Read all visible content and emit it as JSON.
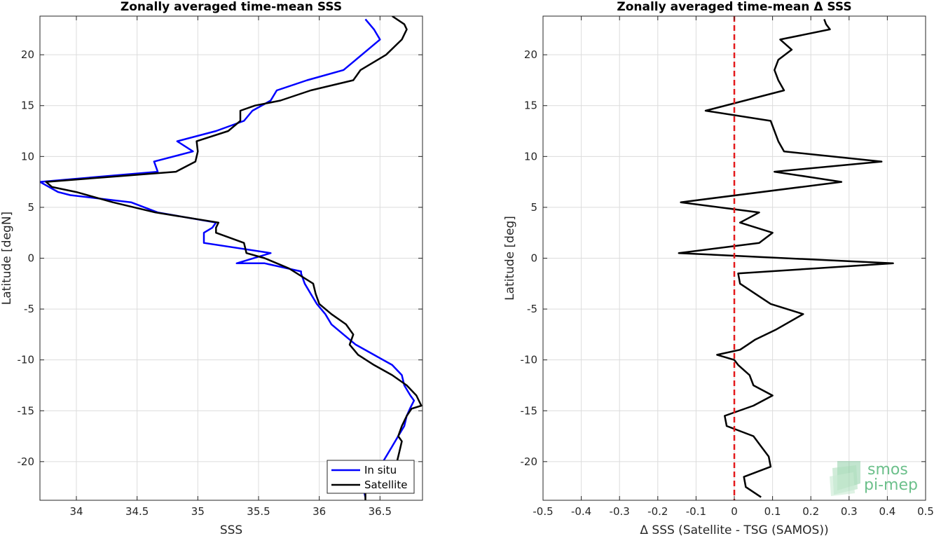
{
  "chart_data": [
    {
      "type": "line",
      "title": "Zonally averaged time-mean SSS",
      "xlabel": "SSS",
      "ylabel": "Latitude [degN]",
      "xlim": [
        33.7,
        36.85
      ],
      "ylim": [
        -23.8,
        23.8
      ],
      "xticks": [
        34,
        34.5,
        35,
        35.5,
        36,
        36.5
      ],
      "yticks": [
        -20,
        -15,
        -10,
        -5,
        0,
        5,
        10,
        15,
        20
      ],
      "grid": true,
      "legend_position": "bottom-right",
      "series": [
        {
          "name": "In situ",
          "color": "#0000ff",
          "x": [
            36.38,
            36.36,
            36.5,
            36.5,
            36.55,
            36.6,
            36.65,
            36.7,
            36.72,
            36.75,
            36.78,
            36.75,
            36.7,
            36.68,
            36.6,
            36.45,
            36.3,
            36.2,
            36.1,
            36.05,
            35.98,
            35.93,
            35.88,
            35.85,
            35.85,
            35.55,
            35.32,
            35.6,
            35.05,
            35.05,
            35.12,
            35.15,
            34.67,
            34.45,
            33.95,
            33.85,
            33.7,
            34.67,
            34.64,
            34.96,
            34.83,
            35.15,
            35.38,
            35.45,
            35.6,
            35.65,
            35.9,
            36.2,
            36.3,
            36.4,
            36.5,
            36.45,
            36.38
          ],
          "y": [
            -23.5,
            -22.5,
            -21.5,
            -20.5,
            -19.5,
            -18.5,
            -17.5,
            -16.5,
            -15.5,
            -14.7,
            -14,
            -13.5,
            -12.5,
            -11.5,
            -10.5,
            -9.5,
            -8.5,
            -7.5,
            -6.5,
            -5.5,
            -4.5,
            -3.5,
            -2.5,
            -1.5,
            -1.3,
            -0.5,
            -0.5,
            0.5,
            1.5,
            2.5,
            3.0,
            3.5,
            4.5,
            5.5,
            6.2,
            6.5,
            7.5,
            8.5,
            9.5,
            10.5,
            11.5,
            12.5,
            13.5,
            14.5,
            15.5,
            16.5,
            17.5,
            18.5,
            19.5,
            20.5,
            21.5,
            22.5,
            23.5
          ]
        },
        {
          "name": "Satellite",
          "color": "#000000",
          "x": [
            36.38,
            36.38,
            36.62,
            36.64,
            36.66,
            36.68,
            36.65,
            36.68,
            36.72,
            36.76,
            36.84,
            36.8,
            36.72,
            36.6,
            36.45,
            36.32,
            36.25,
            36.28,
            36.22,
            36.1,
            36.0,
            35.97,
            35.95,
            35.75,
            35.55,
            35.4,
            35.38,
            35.15,
            35.15,
            35.17,
            34.65,
            34.3,
            34.0,
            33.8,
            33.75,
            34.82,
            34.98,
            35.0,
            34.99,
            35.25,
            35.35,
            35.35,
            35.47,
            35.68,
            35.93,
            36.28,
            36.34,
            36.55,
            36.68,
            36.72,
            36.7,
            36.6
          ],
          "y": [
            -23.8,
            -22.5,
            -21.0,
            -20.0,
            -19.0,
            -18.0,
            -17.5,
            -16.5,
            -15.5,
            -14.8,
            -14.5,
            -13.5,
            -12.5,
            -11.5,
            -10.5,
            -9.5,
            -8.5,
            -7.5,
            -6.5,
            -5.5,
            -4.5,
            -3.5,
            -2.5,
            -1.0,
            0.0,
            0.5,
            1.5,
            2.5,
            3.0,
            3.5,
            4.5,
            5.5,
            6.5,
            7.0,
            7.5,
            8.5,
            9.5,
            10.5,
            11.5,
            12.5,
            13.5,
            14.5,
            15.0,
            15.5,
            16.5,
            17.5,
            18.5,
            20.0,
            21.5,
            22.5,
            23.0,
            23.8
          ]
        }
      ],
      "legend": [
        "In situ",
        "Satellite"
      ]
    },
    {
      "type": "line",
      "title": "Zonally averaged time-mean Δ SSS",
      "xlabel": "Δ SSS (Satellite - TSG (SAMOS))",
      "ylabel": "Latitude [deg]",
      "xlim": [
        -0.5,
        0.5
      ],
      "ylim": [
        -23.8,
        23.8
      ],
      "xticks": [
        -0.5,
        -0.4,
        -0.3,
        -0.2,
        -0.1,
        0,
        0.1,
        0.2,
        0.3,
        0.4,
        0.5
      ],
      "yticks": [
        -20,
        -15,
        -10,
        -5,
        0,
        5,
        10,
        15,
        20
      ],
      "grid": true,
      "reference_line": {
        "x": 0,
        "color": "#e41a1c",
        "style": "dashed"
      },
      "series": [
        {
          "color": "#000000",
          "x": [
            0.07,
            0.03,
            0.025,
            0.095,
            0.09,
            0.07,
            0.05,
            -0.02,
            -0.025,
            0.05,
            0.1,
            0.05,
            0.04,
            0.01,
            0.0,
            -0.045,
            0.015,
            0.035,
            0.055,
            0.11,
            0.18,
            0.095,
            0.055,
            0.015,
            0.01,
            0.415,
            -0.145,
            0.065,
            0.1,
            0.015,
            0.065,
            -0.14,
            0.28,
            0.105,
            0.385,
            0.13,
            0.115,
            0.095,
            -0.075,
            0.13,
            0.115,
            0.105,
            0.115,
            0.15,
            0.12,
            0.25,
            0.24,
            0.235
          ],
          "y": [
            -23.5,
            -22.5,
            -21.5,
            -20.5,
            -19.5,
            -18.5,
            -17.5,
            -16.5,
            -15.5,
            -14.5,
            -13.5,
            -12.5,
            -11.5,
            -10.5,
            -10.0,
            -9.5,
            -9.0,
            -8.5,
            -8.0,
            -7.0,
            -5.5,
            -4.5,
            -3.5,
            -2.5,
            -1.5,
            -0.5,
            0.5,
            1.5,
            2.5,
            3.5,
            4.5,
            5.5,
            7.5,
            8.5,
            9.5,
            10.5,
            11.5,
            13.5,
            14.5,
            16.5,
            17.5,
            18.5,
            19.5,
            20.5,
            21.5,
            22.5,
            23.0,
            23.5
          ]
        }
      ]
    }
  ],
  "logo": {
    "line1": "smos",
    "line2": "pi-mep",
    "color": "#6cc08b"
  }
}
